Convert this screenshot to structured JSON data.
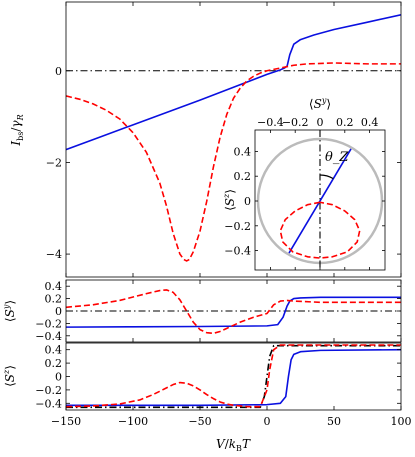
{
  "chart_data": [
    {
      "type": "line",
      "panel": "top",
      "ylabel": "I_bs/γ_R",
      "xlim": [
        -150,
        100
      ],
      "ylim": [
        -4.5,
        1.5
      ],
      "yticks": [
        -4,
        -2,
        0
      ],
      "ytick_labels": [
        "−4",
        "−2",
        "0"
      ],
      "grid": false,
      "reference_line": {
        "y": 0,
        "style": "dash-dot",
        "color": "#000000"
      },
      "series": [
        {
          "color": "#0a10e0",
          "style": "solid",
          "x": [
            -150,
            -125,
            -100,
            -75,
            -50,
            -25,
            0,
            10,
            13,
            15,
            17,
            20,
            25,
            35,
            50,
            75,
            100
          ],
          "y": [
            -1.72,
            -1.45,
            -1.18,
            -0.91,
            -0.64,
            -0.36,
            -0.08,
            0.02,
            0.06,
            0.1,
            0.35,
            0.58,
            0.68,
            0.78,
            0.9,
            1.06,
            1.22
          ]
        },
        {
          "color": "#ff0000",
          "style": "dashed",
          "x": [
            -150,
            -140,
            -130,
            -120,
            -110,
            -100,
            -90,
            -80,
            -75,
            -70,
            -65,
            -62,
            -60,
            -58,
            -55,
            -50,
            -45,
            -40,
            -35,
            -30,
            -25,
            -20,
            -15,
            -10,
            -5,
            0,
            5,
            10,
            20,
            30,
            50,
            75,
            100
          ],
          "y": [
            -0.55,
            -0.62,
            -0.72,
            -0.86,
            -1.05,
            -1.35,
            -1.78,
            -2.45,
            -2.95,
            -3.55,
            -4.0,
            -4.12,
            -4.15,
            -4.12,
            -3.95,
            -3.5,
            -2.85,
            -2.1,
            -1.45,
            -0.95,
            -0.6,
            -0.38,
            -0.22,
            -0.12,
            -0.05,
            0.0,
            0.03,
            0.06,
            0.12,
            0.15,
            0.17,
            0.15,
            0.15
          ]
        }
      ]
    },
    {
      "type": "line",
      "panel": "inset",
      "xlabel": "⟨S^y⟩",
      "ylabel": "⟨S^z⟩",
      "xlim": [
        -0.5,
        0.5
      ],
      "ylim": [
        -0.5,
        0.5
      ],
      "xticks": [
        -0.4,
        -0.2,
        0,
        0.2,
        0.4
      ],
      "xtick_labels": [
        "−0.4",
        "−0.2",
        "0",
        "0.2",
        "0.4"
      ],
      "yticks": [
        -0.4,
        -0.2,
        0,
        0.2,
        0.4
      ],
      "ytick_labels": [
        "−0.4",
        "−0.2",
        "0",
        "0.2",
        "0.4"
      ],
      "annotation": "θ_Z",
      "circle": {
        "radius": 0.5,
        "color": "#bbbbbb"
      },
      "reference_line": {
        "x": 0,
        "style": "dash-dot",
        "color": "#000000"
      },
      "series": [
        {
          "color": "#0a10e0",
          "style": "solid",
          "x": [
            -0.25,
            0.25
          ],
          "y": [
            -0.42,
            0.42
          ]
        },
        {
          "color": "#ff0000",
          "style": "dashed",
          "x": [
            0.0,
            -0.1,
            -0.2,
            -0.28,
            -0.32,
            -0.3,
            -0.22,
            -0.1,
            0.0,
            0.1,
            0.22,
            0.3,
            0.32,
            0.28,
            0.2,
            0.1,
            0.0
          ],
          "y": [
            -0.01,
            -0.03,
            -0.08,
            -0.15,
            -0.24,
            -0.33,
            -0.41,
            -0.45,
            -0.46,
            -0.45,
            -0.41,
            -0.33,
            -0.24,
            -0.15,
            -0.08,
            -0.03,
            -0.01
          ]
        }
      ]
    },
    {
      "type": "line",
      "panel": "middle",
      "ylabel": "⟨S^y⟩",
      "xlim": [
        -150,
        100
      ],
      "ylim": [
        -0.5,
        0.5
      ],
      "yticks": [
        -0.4,
        -0.2,
        0,
        0.2,
        0.4
      ],
      "ytick_labels": [
        "−0.4",
        "−0.2",
        "0",
        "0.2",
        "0.4"
      ],
      "reference_line": {
        "y": 0,
        "style": "dash-dot",
        "color": "#000000"
      },
      "series": [
        {
          "color": "#0a10e0",
          "style": "solid",
          "x": [
            -150,
            -100,
            -50,
            0,
            8,
            12,
            15,
            17,
            20,
            25,
            40,
            100
          ],
          "y": [
            -0.26,
            -0.255,
            -0.25,
            -0.24,
            -0.22,
            -0.1,
            0.08,
            0.16,
            0.2,
            0.21,
            0.22,
            0.22
          ]
        },
        {
          "color": "#ff0000",
          "style": "dashed",
          "x": [
            -150,
            -130,
            -110,
            -90,
            -80,
            -75,
            -70,
            -65,
            -60,
            -55,
            -50,
            -45,
            -40,
            -35,
            -30,
            -20,
            -10,
            0,
            5,
            10,
            15,
            20,
            40,
            100
          ],
          "y": [
            0.06,
            0.1,
            0.17,
            0.28,
            0.33,
            0.34,
            0.3,
            0.18,
            0.0,
            -0.18,
            -0.3,
            -0.35,
            -0.36,
            -0.33,
            -0.28,
            -0.18,
            -0.1,
            -0.04,
            0.1,
            0.16,
            0.17,
            0.16,
            0.14,
            0.14
          ]
        }
      ]
    },
    {
      "type": "line",
      "panel": "bottom",
      "ylabel": "⟨S^z⟩",
      "xlabel": "V/k_B T",
      "xlim": [
        -150,
        100
      ],
      "ylim": [
        -0.5,
        0.5
      ],
      "xticks": [
        -150,
        -100,
        -50,
        0,
        50,
        100
      ],
      "xtick_labels": [
        "−150",
        "−100",
        "−50",
        "0",
        "50",
        "100"
      ],
      "yticks": [
        -0.4,
        -0.2,
        0,
        0.2,
        0.4
      ],
      "ytick_labels": [
        "−0.4",
        "−0.2",
        "0",
        "0.2",
        "0.4"
      ],
      "series": [
        {
          "color": "#000000",
          "style": "dash-dot",
          "x": [
            -150,
            -5,
            -2,
            0,
            2,
            5,
            100
          ],
          "y": [
            -0.46,
            -0.46,
            -0.3,
            0.0,
            0.3,
            0.46,
            0.46
          ]
        },
        {
          "color": "#0a10e0",
          "style": "solid",
          "x": [
            -150,
            -50,
            0,
            10,
            14,
            16,
            18,
            20,
            25,
            40,
            100
          ],
          "y": [
            -0.43,
            -0.43,
            -0.42,
            -0.4,
            -0.3,
            0.0,
            0.25,
            0.33,
            0.37,
            0.39,
            0.4
          ]
        },
        {
          "color": "#ff0000",
          "style": "dashed",
          "x": [
            -150,
            -130,
            -110,
            -95,
            -85,
            -75,
            -70,
            -65,
            -60,
            -55,
            -50,
            -45,
            -40,
            -35,
            -30,
            -25,
            -20,
            -15,
            -10,
            -5,
            0,
            2,
            5,
            10,
            30,
            100
          ],
          "y": [
            -0.45,
            -0.44,
            -0.41,
            -0.35,
            -0.27,
            -0.17,
            -0.12,
            -0.09,
            -0.1,
            -0.14,
            -0.2,
            -0.27,
            -0.33,
            -0.38,
            -0.41,
            -0.43,
            -0.44,
            -0.45,
            -0.45,
            -0.45,
            -0.2,
            0.1,
            0.4,
            0.47,
            0.47,
            0.47
          ]
        }
      ]
    }
  ]
}
